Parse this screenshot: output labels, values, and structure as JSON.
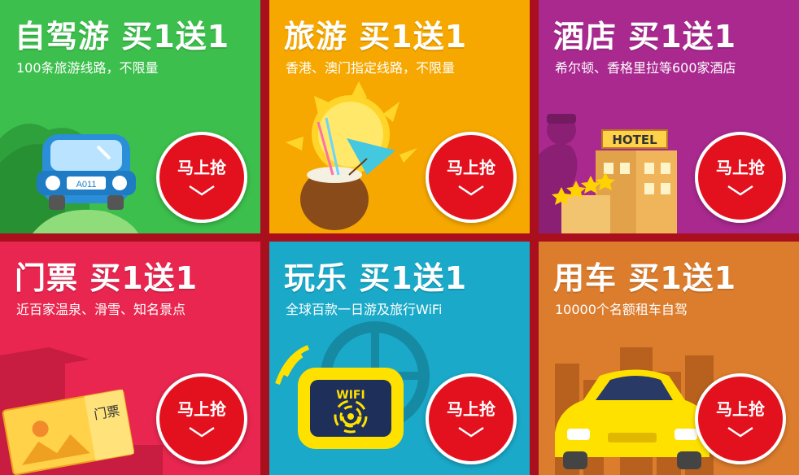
{
  "tiles": [
    {
      "id": "drive",
      "title": "自驾游 买1送1",
      "subtitle": "100条旅游线路，不限量",
      "button": "马上抢",
      "color": "#3cbf4c",
      "plate": "A011"
    },
    {
      "id": "travel",
      "title": "旅游 买1送1",
      "subtitle": "香港、澳门指定线路，不限量",
      "button": "马上抢",
      "color": "#f6a800"
    },
    {
      "id": "hotel",
      "title": "酒店 买1送1",
      "subtitle": "希尔顿、香格里拉等600家酒店",
      "button": "马上抢",
      "color": "#a9298f",
      "sign": "HOTEL"
    },
    {
      "id": "ticket",
      "title": "门票 买1送1",
      "subtitle": "近百家温泉、滑雪、知名景点",
      "button": "马上抢",
      "color": "#e8264f",
      "ticket_text": "门票"
    },
    {
      "id": "fun",
      "title": "玩乐 买1送1",
      "subtitle": "全球百款一日游及旅行WiFi",
      "button": "马上抢",
      "color": "#1aa9c8",
      "wifi": "WIFI"
    },
    {
      "id": "car",
      "title": "用车 买1送1",
      "subtitle": "10000个名额租车自驾",
      "button": "马上抢",
      "color": "#dc7c2d"
    }
  ],
  "icons": {
    "chevron": "chevron-down-icon"
  }
}
